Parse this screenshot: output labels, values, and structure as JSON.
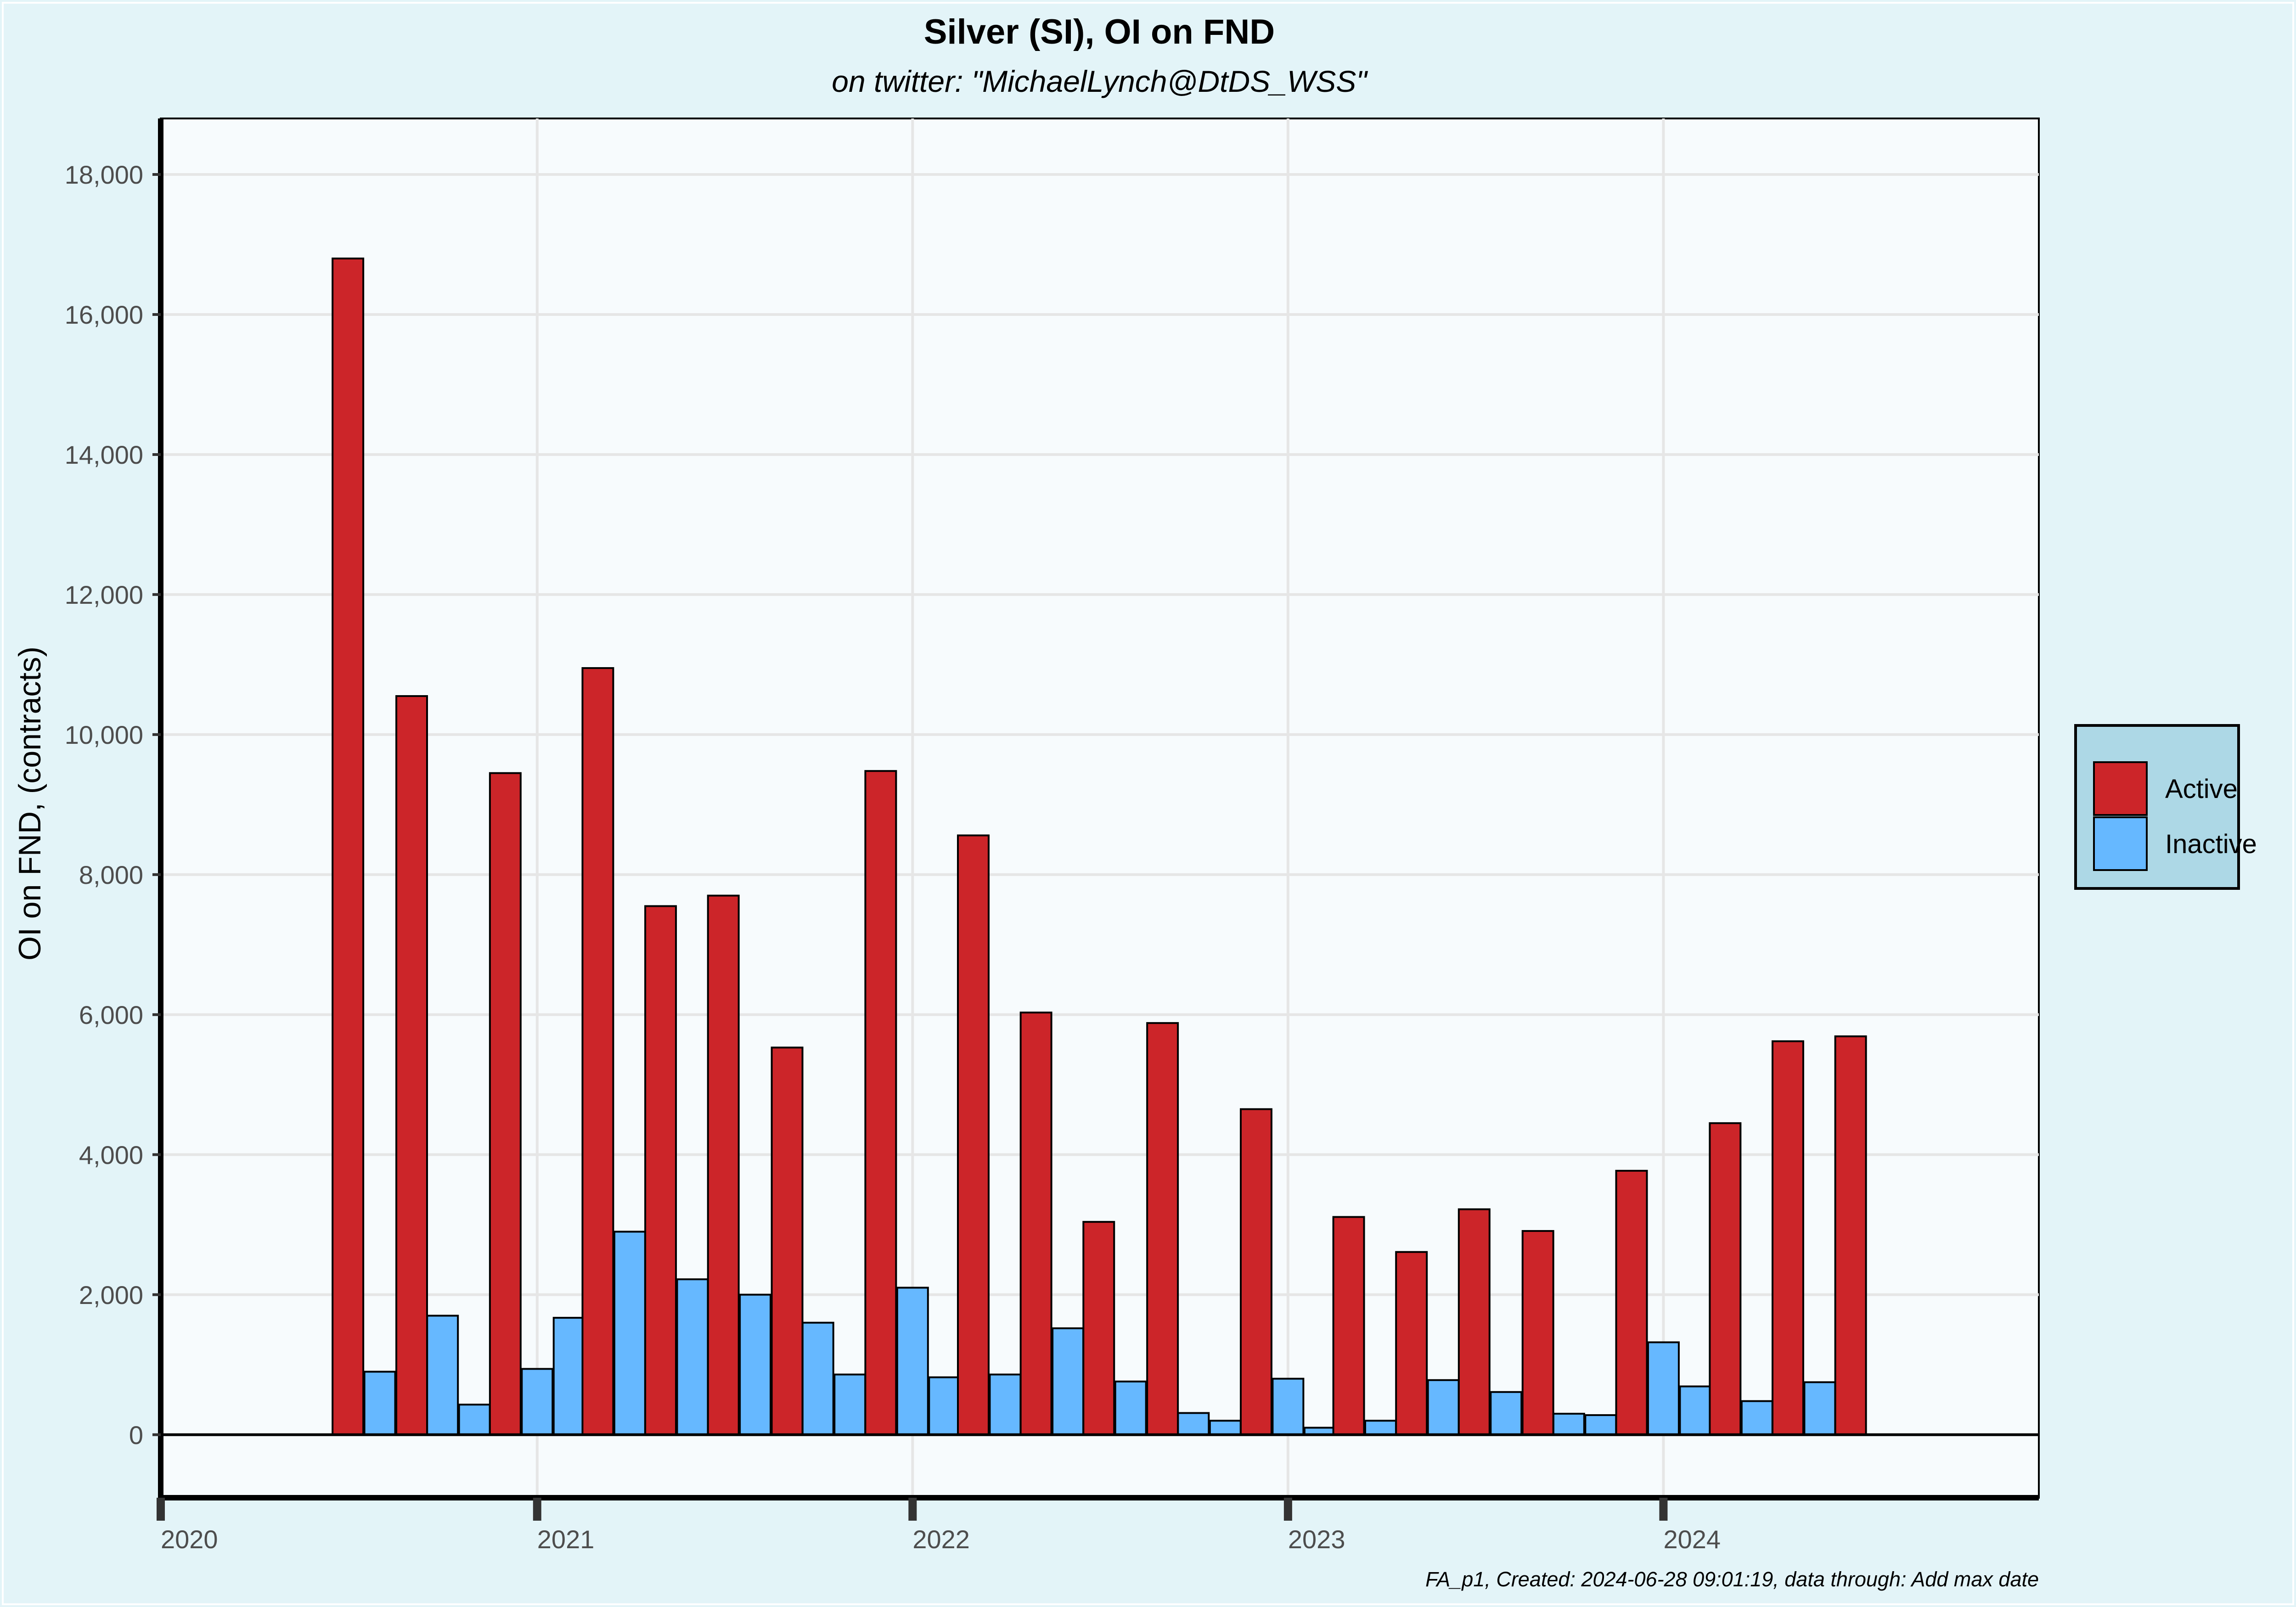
{
  "chart_data": {
    "type": "bar",
    "title": "Silver (SI), OI on FND",
    "subtitle": "on twitter:   \"MichaelLynch@DtDS_WSS\"",
    "ylabel": "OI on FND, (contracts)",
    "xlabel": "",
    "caption": "FA_p1, Created: 2024-06-28 09:01:19, data through:  Add max date",
    "ylim": [
      -900,
      18800
    ],
    "yticks": [
      0,
      2000,
      4000,
      6000,
      8000,
      10000,
      12000,
      14000,
      16000,
      18000
    ],
    "ytick_labels": [
      "0",
      "2,000",
      "4,000",
      "6,000",
      "8,000",
      "10,000",
      "12,000",
      "14,000",
      "16,000",
      "18,000"
    ],
    "x_range": [
      "2020-01-01",
      "2024-12-31"
    ],
    "x_ticks": [
      "2020-01-01",
      "2021-01-01",
      "2022-01-01",
      "2023-01-01",
      "2024-01-01"
    ],
    "x_tick_labels": [
      "2020",
      "2021",
      "2022",
      "2023",
      "2024"
    ],
    "grid": true,
    "legend": {
      "position": "right",
      "entries": [
        {
          "name": "Active",
          "color": "#cc2529"
        },
        {
          "name": "Inactive",
          "color": "#66b8ff"
        }
      ]
    },
    "bars": [
      {
        "date": "2020-07-01",
        "series": "Active",
        "value": 16800
      },
      {
        "date": "2020-08-01",
        "series": "Inactive",
        "value": 900
      },
      {
        "date": "2020-09-01",
        "series": "Active",
        "value": 10550
      },
      {
        "date": "2020-10-01",
        "series": "Inactive",
        "value": 1700
      },
      {
        "date": "2020-11-01",
        "series": "Inactive",
        "value": 430
      },
      {
        "date": "2020-12-01",
        "series": "Active",
        "value": 9450
      },
      {
        "date": "2021-01-01",
        "series": "Inactive",
        "value": 940
      },
      {
        "date": "2021-02-01",
        "series": "Inactive",
        "value": 1670
      },
      {
        "date": "2021-03-01",
        "series": "Active",
        "value": 10950
      },
      {
        "date": "2021-04-01",
        "series": "Inactive",
        "value": 2900
      },
      {
        "date": "2021-05-01",
        "series": "Active",
        "value": 7550
      },
      {
        "date": "2021-06-01",
        "series": "Inactive",
        "value": 2220
      },
      {
        "date": "2021-07-01",
        "series": "Active",
        "value": 7700
      },
      {
        "date": "2021-08-01",
        "series": "Inactive",
        "value": 2000
      },
      {
        "date": "2021-09-01",
        "series": "Active",
        "value": 5530
      },
      {
        "date": "2021-10-01",
        "series": "Inactive",
        "value": 1600
      },
      {
        "date": "2021-11-01",
        "series": "Inactive",
        "value": 860
      },
      {
        "date": "2021-12-01",
        "series": "Active",
        "value": 9480
      },
      {
        "date": "2022-01-01",
        "series": "Inactive",
        "value": 2100
      },
      {
        "date": "2022-02-01",
        "series": "Inactive",
        "value": 820
      },
      {
        "date": "2022-03-01",
        "series": "Active",
        "value": 8560
      },
      {
        "date": "2022-04-01",
        "series": "Inactive",
        "value": 860
      },
      {
        "date": "2022-05-01",
        "series": "Active",
        "value": 6030
      },
      {
        "date": "2022-06-01",
        "series": "Inactive",
        "value": 1520
      },
      {
        "date": "2022-07-01",
        "series": "Active",
        "value": 3040
      },
      {
        "date": "2022-08-01",
        "series": "Inactive",
        "value": 760
      },
      {
        "date": "2022-09-01",
        "series": "Active",
        "value": 5880
      },
      {
        "date": "2022-10-01",
        "series": "Inactive",
        "value": 310
      },
      {
        "date": "2022-11-01",
        "series": "Inactive",
        "value": 200
      },
      {
        "date": "2022-12-01",
        "series": "Active",
        "value": 4650
      },
      {
        "date": "2023-01-01",
        "series": "Inactive",
        "value": 800
      },
      {
        "date": "2023-02-01",
        "series": "Inactive",
        "value": 100
      },
      {
        "date": "2023-03-01",
        "series": "Active",
        "value": 3110
      },
      {
        "date": "2023-04-01",
        "series": "Inactive",
        "value": 200
      },
      {
        "date": "2023-05-01",
        "series": "Active",
        "value": 2610
      },
      {
        "date": "2023-06-01",
        "series": "Inactive",
        "value": 780
      },
      {
        "date": "2023-07-01",
        "series": "Active",
        "value": 3220
      },
      {
        "date": "2023-08-01",
        "series": "Inactive",
        "value": 610
      },
      {
        "date": "2023-09-01",
        "series": "Active",
        "value": 2910
      },
      {
        "date": "2023-10-01",
        "series": "Inactive",
        "value": 300
      },
      {
        "date": "2023-11-01",
        "series": "Inactive",
        "value": 280
      },
      {
        "date": "2023-12-01",
        "series": "Active",
        "value": 3770
      },
      {
        "date": "2024-01-01",
        "series": "Inactive",
        "value": 1320
      },
      {
        "date": "2024-02-01",
        "series": "Inactive",
        "value": 690
      },
      {
        "date": "2024-03-01",
        "series": "Active",
        "value": 4450
      },
      {
        "date": "2024-04-01",
        "series": "Inactive",
        "value": 480
      },
      {
        "date": "2024-05-01",
        "series": "Active",
        "value": 5620
      },
      {
        "date": "2024-06-01",
        "series": "Inactive",
        "value": 750
      },
      {
        "date": "2024-07-01",
        "series": "Active",
        "value": 5690
      }
    ]
  },
  "colors": {
    "page_background": "#e3f4f8",
    "panel_background": "#f7fbfd",
    "legend_background": "#add8e6",
    "active": "#cc2529",
    "inactive": "#66b8ff"
  }
}
